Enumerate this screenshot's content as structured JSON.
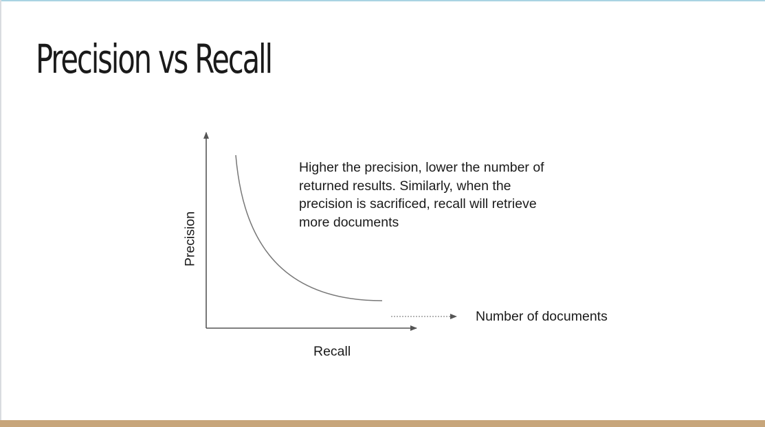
{
  "slide": {
    "title": "Precision vs Recall"
  },
  "diagram": {
    "y_axis_label": "Precision",
    "x_axis_label": "Recall",
    "arrow_label": "Number of documents",
    "annotation": "Higher the precision, lower the number of returned results. Similarly, when the precision is sacrificed, recall will retrieve more documents"
  },
  "colors": {
    "axis": "#555555",
    "curve": "#777777",
    "footer_bar": "#c7a57a",
    "top_edge": "#a9d3e2"
  }
}
